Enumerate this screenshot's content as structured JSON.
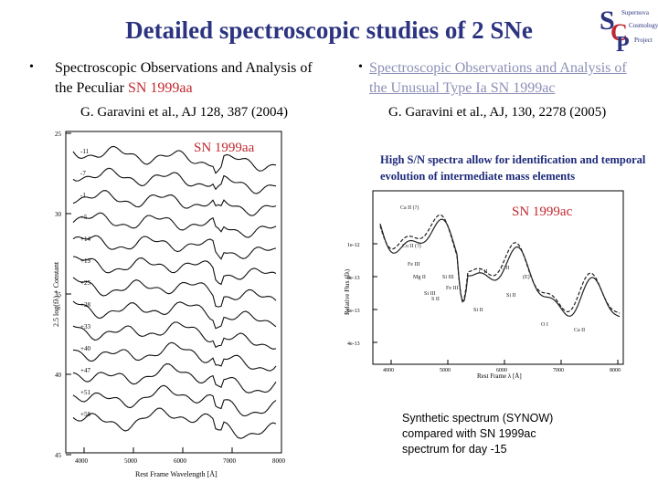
{
  "title": "Detailed spectroscopic studies of 2 SNe",
  "logo": {
    "letters": "SCP",
    "lines": [
      "Supernova",
      "Cosmology",
      "Project"
    ]
  },
  "left": {
    "bullet_prefix": "Spectroscopic Observations and Analysis of the Peculiar ",
    "bullet_highlight": "SN 1999aa",
    "citation": "G. Garavini et al.,  AJ 128, 387 (2004)",
    "plot_label": "SN 1999aa",
    "y_axis_label": "2.5 log(fλ) + Constant",
    "x_axis_label": "Rest Frame Wavelength [Å]",
    "y_ticks": [
      "25",
      "30",
      "35",
      "40",
      "45"
    ],
    "x_ticks": [
      "4000",
      "5000",
      "6000",
      "7000",
      "8000"
    ],
    "epochs": [
      "-11",
      "-7",
      "-1",
      "+5",
      "+14",
      "+19",
      "+25",
      "+28",
      "+33",
      "+40",
      "+47",
      "+51",
      "+58"
    ]
  },
  "right": {
    "bullet": "Spectroscopic Observations and Analysis of the Unusual Type Ia SN 1999ac",
    "citation": "G. Garavini et al., AJ, 130, 2278 (2005)",
    "note": "High S/N spectra allow for identification and temporal evolution of intermediate mass elements",
    "plot_label": "SN 1999ac",
    "y_axis_label": "Relative Flux (fλ)",
    "x_axis_label": "Rest Frame λ [Å]",
    "x_ticks": [
      "4000",
      "5000",
      "6000",
      "7000",
      "8000"
    ],
    "y_ticks": [
      "1e-12",
      "8e-13",
      "6e-13",
      "4e-13"
    ],
    "synthetic_caption": "Synthetic spectrum (SYNOW) compared with SN 1999ac spectrum for day -15"
  },
  "colors": {
    "title": "#2c3380",
    "highlight": "#c0282f",
    "link": "#8c8fb6",
    "note": "#1e2a7a"
  }
}
